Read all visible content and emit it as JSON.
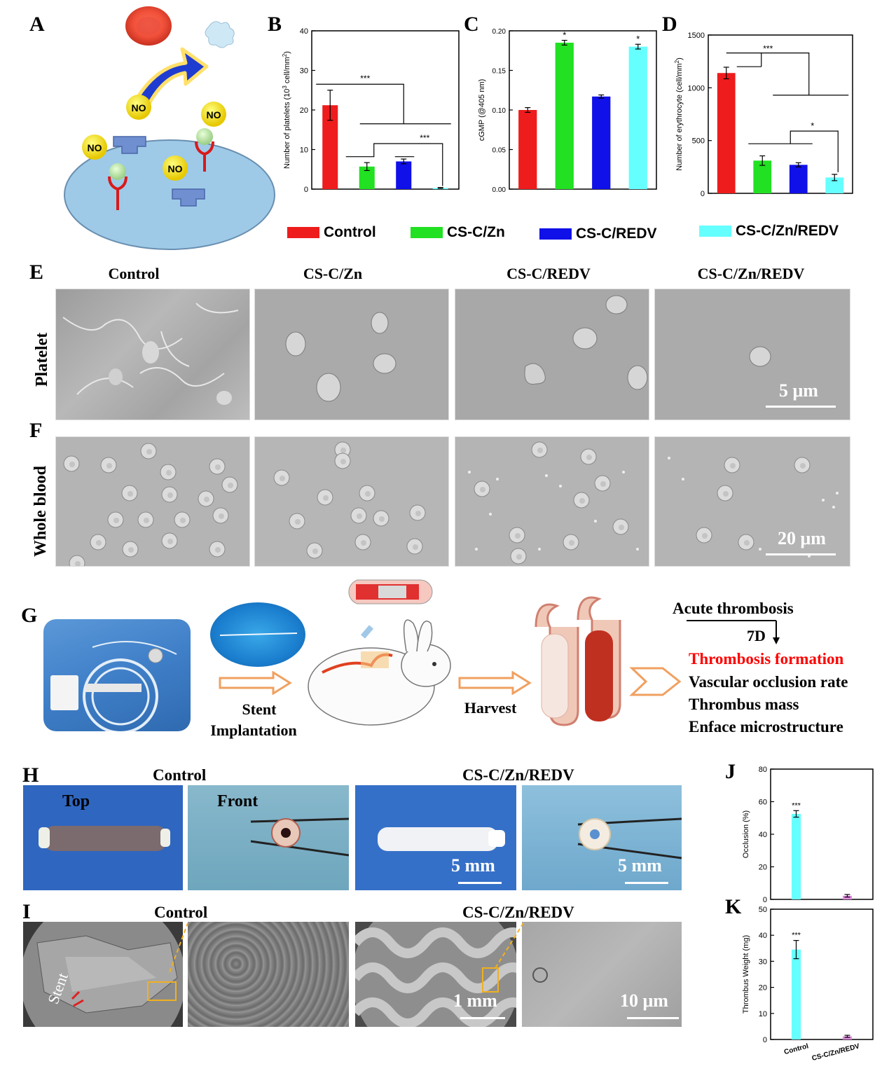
{
  "panel_letters": {
    "A": "A",
    "B": "B",
    "C": "C",
    "D": "D",
    "E": "E",
    "F": "F",
    "G": "G",
    "H": "H",
    "I": "I",
    "J": "J",
    "K": "K"
  },
  "diagram_a": {
    "no_labels": [
      "NO",
      "NO",
      "NO",
      "NO"
    ]
  },
  "colors": {
    "control": "#ee1c1c",
    "cs_c_zn": "#22e022",
    "cs_c_redv": "#1010e8",
    "cs_c_zn_redv": "#66ffff",
    "magenta": "#e68ae6",
    "red_text": "#ff0000"
  },
  "legend": [
    {
      "label": "Control",
      "color": "#ee1c1c"
    },
    {
      "label": "CS-C/Zn",
      "color": "#22e022"
    },
    {
      "label": "CS-C/REDV",
      "color": "#1010e8"
    },
    {
      "label": "CS-C/Zn/REDV",
      "color": "#66ffff"
    }
  ],
  "chart_data": [
    {
      "id": "B",
      "type": "bar",
      "categories": [
        "Control",
        "CS-C/Zn",
        "CS-C/REDV",
        "CS-C/Zn/REDV"
      ],
      "values": [
        21.2,
        5.7,
        7.0,
        0.3
      ],
      "errors": [
        3.8,
        1.0,
        0.6,
        0.1
      ],
      "ylabel": "Number of platelets (10",
      "ylabel_sup": "3",
      "ylabel_tail": " cell/mm",
      "ylabel_sup2": "2",
      "ylabel_end": ")",
      "ylim": [
        0,
        40
      ],
      "yticks": [
        0,
        10,
        20,
        30,
        40
      ],
      "annotations": [
        "***",
        "***"
      ]
    },
    {
      "id": "C",
      "type": "bar",
      "categories": [
        "Control",
        "CS-C/Zn",
        "CS-C/REDV",
        "CS-C/Zn/REDV"
      ],
      "values": [
        0.1,
        0.185,
        0.117,
        0.18
      ],
      "errors": [
        0.003,
        0.003,
        0.002,
        0.003
      ],
      "ylabel": "cGMP (@405 nm)",
      "ylim": [
        0,
        0.2
      ],
      "yticks": [
        "0.00",
        "0.05",
        "0.10",
        "0.15",
        "0.20"
      ],
      "annotations": [
        "*",
        "*"
      ]
    },
    {
      "id": "D",
      "type": "bar",
      "categories": [
        "Control",
        "CS-C/Zn",
        "CS-C/REDV",
        "CS-C/Zn/REDV"
      ],
      "values": [
        1140,
        310,
        270,
        150
      ],
      "errors": [
        55,
        45,
        20,
        30
      ],
      "ylabel": "Number of erythrocyte (cell/mm",
      "ylabel_sup": "2",
      "ylabel_end": ")",
      "ylim": [
        0,
        1500
      ],
      "yticks": [
        0,
        500,
        1000,
        1500
      ],
      "annotations": [
        "***",
        "*"
      ]
    },
    {
      "id": "J",
      "type": "bar",
      "categories": [
        "Control",
        "CS-C/Zn/REDV"
      ],
      "values": [
        52.5,
        2.2
      ],
      "errors": [
        2.0,
        0.8
      ],
      "colors": [
        "#66ffff",
        "#e68ae6"
      ],
      "ylabel": "Occlusion (%)",
      "ylim": [
        0,
        80
      ],
      "yticks": [
        0,
        20,
        40,
        60,
        80
      ],
      "annotations": [
        "***"
      ]
    },
    {
      "id": "K",
      "type": "bar",
      "categories": [
        "Control",
        "CS-C/Zn/REDV"
      ],
      "values": [
        34.5,
        1.2
      ],
      "errors": [
        3.5,
        0.4
      ],
      "colors": [
        "#66ffff",
        "#e68ae6"
      ],
      "ylabel": "Thrombus Weight (mg)",
      "ylim": [
        0,
        50
      ],
      "yticks": [
        0,
        10,
        20,
        30,
        40,
        50
      ],
      "annotations": [
        "***"
      ]
    }
  ],
  "sem": {
    "column_headers": [
      "Control",
      "CS-C/Zn",
      "CS-C/REDV",
      "CS-C/Zn/REDV"
    ],
    "row_platelet": "Platelet",
    "row_whole_blood": "Whole blood",
    "scale_platelet": "5 μm",
    "scale_blood": "20 μm"
  },
  "workflow": {
    "step1": "Stent",
    "step1b": "Implantation",
    "step2": "Harvest",
    "acute": "Acute thrombosis",
    "days": "7D",
    "outcomes": [
      "Thrombosis formation",
      "Vascular occlusion rate",
      "Thrombus mass",
      "Enface microstructure"
    ]
  },
  "photos_h": {
    "control": "Control",
    "treated": "CS-C/Zn/REDV",
    "top": "Top",
    "front": "Front",
    "scale1": "5 mm",
    "scale2": "5 mm"
  },
  "sem_i": {
    "control": "Control",
    "treated": "CS-C/Zn/REDV",
    "stent": "Stent",
    "scale1": "1 mm",
    "scale2": "10 μm"
  }
}
